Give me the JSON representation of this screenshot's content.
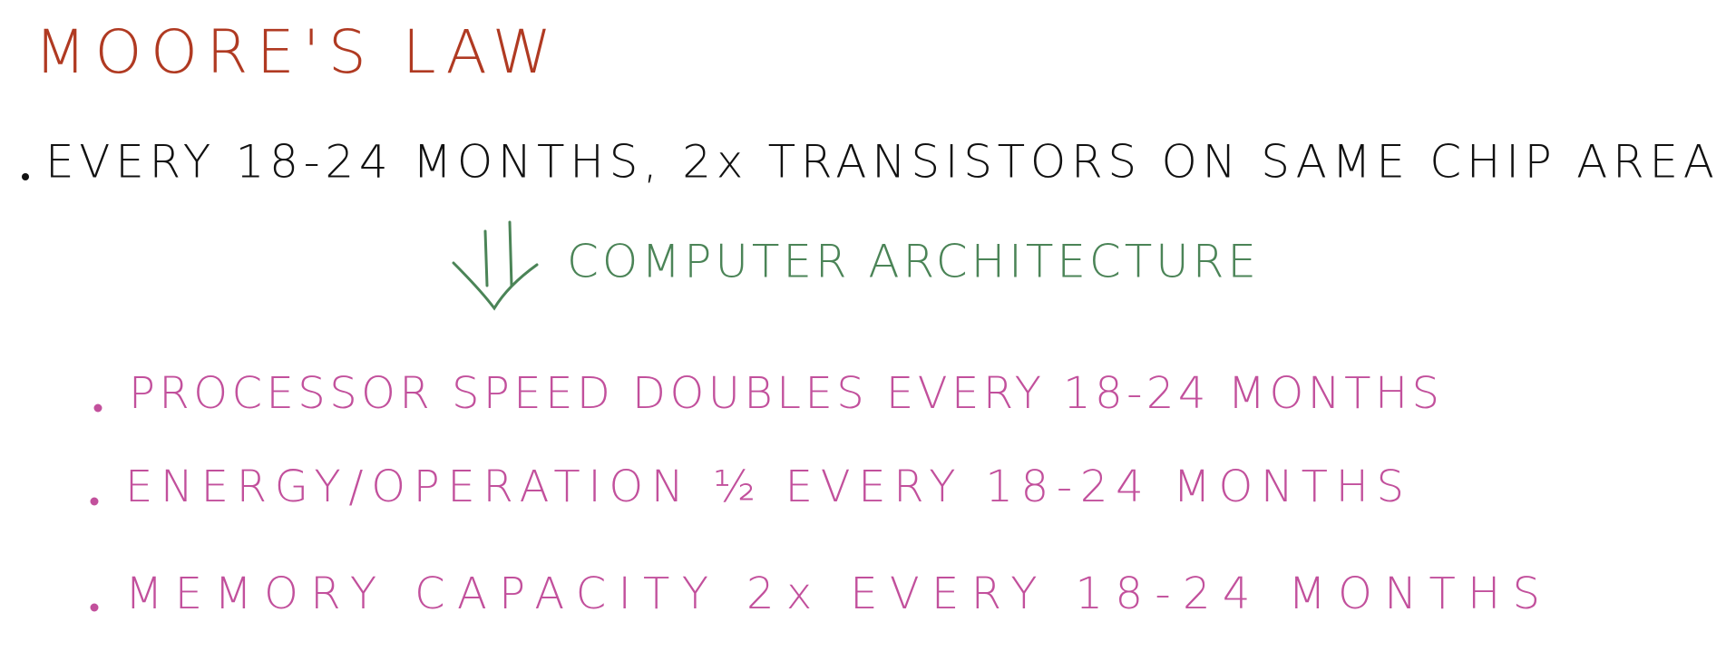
{
  "title": "MOORE'S LAW",
  "main_point": "EVERY 18-24 MONTHS, 2x TRANSISTORS ON SAME CHIP AREA",
  "arrow_label": "COMPUTER ARCHITECTURE",
  "sub_points": [
    "PROCESSOR SPEED DOUBLES EVERY 18-24 MONTHS",
    "ENERGY/OPERATION ½ EVERY 18-24 MONTHS",
    "MEMORY CAPACITY 2x EVERY 18-24 MONTHS"
  ]
}
